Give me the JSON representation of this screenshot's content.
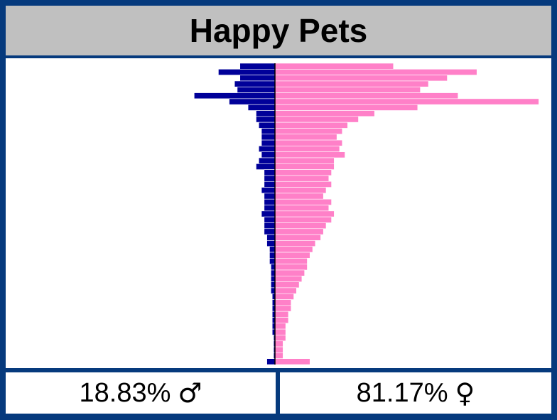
{
  "title": "Happy Pets",
  "footer": {
    "male_percent": "18.83%",
    "male_symbol": "♂",
    "female_percent": "81.17%",
    "female_symbol": "♀"
  },
  "colors": {
    "frame": "#063a7d",
    "title_bg": "#c0c0c0",
    "male": "#000099",
    "female": "#ff80c8",
    "axis": "#000000"
  },
  "chart_data": {
    "type": "bar",
    "orientation": "horizontal",
    "layout": "population-pyramid",
    "x_max": 100,
    "series": [
      {
        "name": "♂",
        "values": [
          13,
          21,
          13,
          15,
          14,
          30,
          17,
          10,
          7,
          7,
          6,
          5,
          5,
          5,
          6,
          5,
          6,
          7,
          4,
          4,
          4,
          5,
          4,
          4,
          4,
          5,
          4,
          4,
          4,
          3,
          3,
          2,
          2,
          2,
          1.5,
          1.5,
          1.5,
          1.5,
          1.5,
          1,
          1,
          1,
          1,
          1,
          1,
          1,
          0.5,
          0.5,
          0.5,
          0.5,
          3
        ]
      },
      {
        "name": "♀",
        "values": [
          44,
          75,
          64,
          57,
          54,
          68,
          98,
          53,
          37,
          31,
          27,
          25,
          23,
          25,
          24,
          26,
          22,
          22,
          21,
          20,
          21,
          19,
          18,
          21,
          20,
          22,
          21,
          19,
          18,
          17,
          15,
          14,
          13,
          12,
          12,
          11,
          10,
          9,
          8,
          7,
          6,
          6,
          5,
          5,
          4,
          4,
          4,
          3,
          3,
          3,
          13
        ]
      }
    ]
  }
}
